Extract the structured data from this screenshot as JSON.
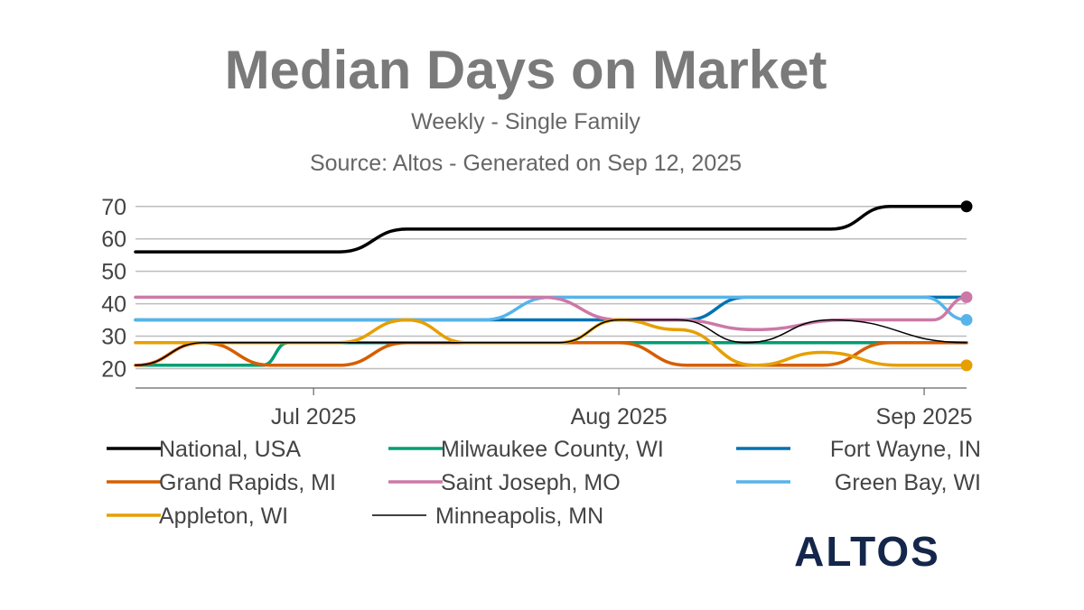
{
  "chart_data": {
    "type": "line",
    "title": "Median Days on Market",
    "subtitle": "Weekly - Single Family",
    "source": "Source: Altos - Generated on Sep 12, 2025",
    "ylim": [
      14,
      73
    ],
    "y_ticks": [
      20,
      30,
      40,
      50,
      60,
      70
    ],
    "x_range": [
      0,
      98
    ],
    "x_ticks": [
      {
        "label": "Jul 2025",
        "x": 21
      },
      {
        "label": "Aug 2025",
        "x": 57
      },
      {
        "label": "Sep 2025",
        "x": 93
      }
    ],
    "xlabel": "",
    "ylabel": "",
    "grid": true,
    "legend_position": "bottom",
    "series": [
      {
        "name": "National, USA",
        "color": "#000000",
        "width": 3.5,
        "points": [
          [
            0,
            56
          ],
          [
            24,
            56
          ],
          [
            32,
            63
          ],
          [
            82,
            63
          ],
          [
            89,
            70
          ],
          [
            98,
            70
          ]
        ],
        "end_marker": true
      },
      {
        "name": "Milwaukee County, WI",
        "color": "#009e73",
        "width": 3.5,
        "points": [
          [
            0,
            21
          ],
          [
            15,
            21
          ],
          [
            18,
            28
          ],
          [
            98,
            28
          ]
        ],
        "end_marker": false
      },
      {
        "name": "Fort Wayne, IN",
        "color": "#0072b2",
        "width": 3.5,
        "points": [
          [
            0,
            35
          ],
          [
            65,
            35
          ],
          [
            72,
            42
          ],
          [
            98,
            42
          ]
        ],
        "end_marker": false
      },
      {
        "name": "Grand Rapids, MI",
        "color": "#d55e00",
        "width": 3.5,
        "points": [
          [
            0,
            21
          ],
          [
            8,
            28
          ],
          [
            16,
            21
          ],
          [
            24,
            21
          ],
          [
            32,
            28
          ],
          [
            50,
            28
          ],
          [
            57,
            28
          ],
          [
            65,
            21
          ],
          [
            81,
            21
          ],
          [
            89,
            28
          ],
          [
            98,
            28
          ]
        ],
        "end_marker": false
      },
      {
        "name": "Saint Joseph, MO",
        "color": "#cc79a7",
        "width": 3.5,
        "points": [
          [
            0,
            42
          ],
          [
            48,
            42
          ],
          [
            57,
            35
          ],
          [
            64,
            35
          ],
          [
            73,
            32
          ],
          [
            84,
            35
          ],
          [
            94,
            35
          ],
          [
            98,
            42
          ]
        ],
        "end_marker": true
      },
      {
        "name": "Green Bay, WI",
        "color": "#56b4e9",
        "width": 3.5,
        "points": [
          [
            0,
            35
          ],
          [
            41,
            35
          ],
          [
            49,
            42
          ],
          [
            93,
            42
          ],
          [
            98,
            35
          ]
        ],
        "end_marker": true
      },
      {
        "name": "Appleton, WI",
        "color": "#e69f00",
        "width": 3.5,
        "points": [
          [
            0,
            28
          ],
          [
            24,
            28
          ],
          [
            32,
            35
          ],
          [
            39,
            28
          ],
          [
            50,
            28
          ],
          [
            57,
            35
          ],
          [
            64,
            32
          ],
          [
            73,
            21
          ],
          [
            81,
            25
          ],
          [
            90,
            21
          ],
          [
            98,
            21
          ]
        ],
        "end_marker": true
      },
      {
        "name": "Minneapolis, MN",
        "color": "#000000",
        "width": 1.5,
        "points": [
          [
            0,
            21
          ],
          [
            8,
            28
          ],
          [
            50,
            28
          ],
          [
            57,
            35
          ],
          [
            64,
            35
          ],
          [
            72,
            28
          ],
          [
            82,
            35
          ],
          [
            98,
            28
          ]
        ],
        "end_marker": false
      }
    ]
  },
  "brand": {
    "logo_text": "ALTOS"
  }
}
